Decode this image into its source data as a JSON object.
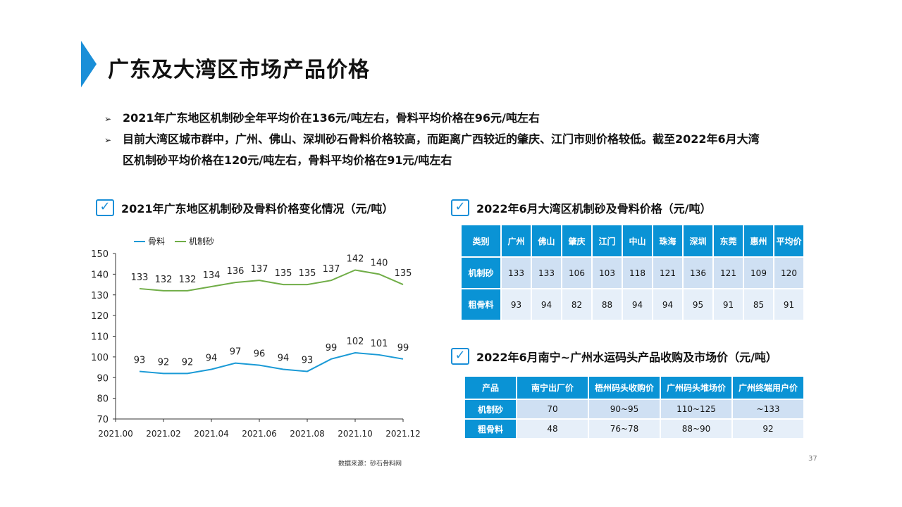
{
  "title": "广东及大湾区市场产品价格",
  "bullets": [
    "2021年广东地区机制砂全年平均价在136元/吨左右，骨料平均价格在96元/吨左右",
    "目前大湾区城市群中，广州、佛山、深圳砂石骨料价格较高，而距离广西较近的肇庆、江门市则价格较低。截至2022年6月大湾",
    "区机制砂平均价格在120元/吨左右，骨料平均价格在91元/吨左右"
  ],
  "bullet_marker": "➢",
  "chart_title": "2021年广东地区机制砂及骨料价格变化情况（元/吨）",
  "table1_title": "2022年6月大湾区机制砂及骨料价格（元/吨）",
  "table2_title": "2022年6月南宁~广州水运码头产品收购及市场价（元/吨）",
  "chart_data": {
    "type": "line",
    "x": [
      1,
      2,
      3,
      4,
      5,
      6,
      7,
      8,
      9,
      10,
      11,
      12
    ],
    "xticks": [
      "2021.00",
      "2021.02",
      "2021.04",
      "2021.06",
      "2021.08",
      "2021.10",
      "2021.12"
    ],
    "xlim": [
      0,
      12
    ],
    "ylim": [
      70,
      150
    ],
    "yticks": [
      70,
      80,
      90,
      100,
      110,
      120,
      130,
      140,
      150
    ],
    "legend_position": "top-left",
    "series": [
      {
        "name": "骨料",
        "color": "#1a9ad6",
        "values": [
          93,
          92,
          92,
          94,
          97,
          96,
          94,
          93,
          99,
          102,
          101,
          99
        ]
      },
      {
        "name": "机制砂",
        "color": "#70ad47",
        "values": [
          133,
          132,
          132,
          134,
          136,
          137,
          135,
          135,
          137,
          142,
          140,
          135
        ]
      }
    ]
  },
  "table1": {
    "headers": [
      "类别",
      "广州",
      "佛山",
      "肇庆",
      "江门",
      "中山",
      "珠海",
      "深圳",
      "东莞",
      "惠州",
      "平均价"
    ],
    "rows": [
      [
        "机制砂",
        "133",
        "133",
        "106",
        "103",
        "118",
        "121",
        "136",
        "121",
        "109",
        "120"
      ],
      [
        "粗骨料",
        "93",
        "94",
        "82",
        "88",
        "94",
        "94",
        "95",
        "91",
        "85",
        "91"
      ]
    ]
  },
  "table2": {
    "headers": [
      "产品",
      "南宁出厂价",
      "梧州码头收购价",
      "广州码头堆场价",
      "广州终端用户价"
    ],
    "rows": [
      [
        "机制砂",
        "70",
        "90~95",
        "110~125",
        "~133"
      ],
      [
        "粗骨料",
        "48",
        "76~78",
        "88~90",
        "92"
      ]
    ]
  },
  "source": "数据来源：砂石骨料网",
  "page_number": "37",
  "check_icon": "✓"
}
